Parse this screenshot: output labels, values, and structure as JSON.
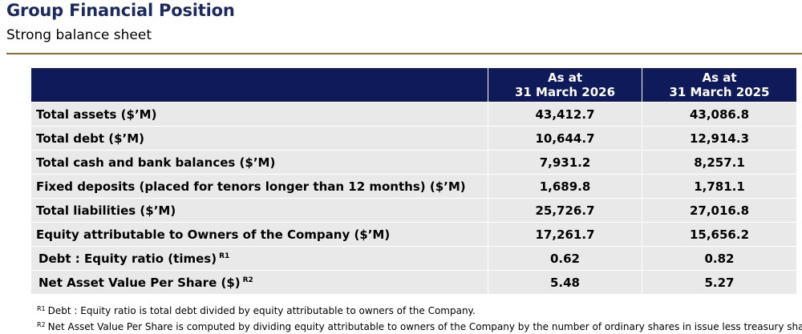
{
  "header": {
    "title": "Group Financial Position",
    "subtitle": "Strong balance sheet"
  },
  "table": {
    "columns": [
      {
        "line1": "As at",
        "line2": "31 March 2026"
      },
      {
        "line1": "As at",
        "line2": "31 March 2025"
      }
    ],
    "rows": [
      {
        "label": "Total assets ($’M)",
        "note": "",
        "v2026": "43,412.7",
        "v2025": "43,086.8"
      },
      {
        "label": "Total debt ($’M)",
        "note": "",
        "v2026": "10,644.7",
        "v2025": "12,914.3"
      },
      {
        "label": "Total cash and bank balances ($’M)",
        "note": "",
        "v2026": "7,931.2",
        "v2025": "8,257.1"
      },
      {
        "label": "Fixed deposits (placed for tenors longer than 12 months) ($’M)",
        "note": "",
        "v2026": "1,689.8",
        "v2025": "1,781.1"
      },
      {
        "label": "Total liabilities ($’M)",
        "note": "",
        "v2026": "25,726.7",
        "v2025": "27,016.8"
      },
      {
        "label": "Equity attributable to Owners of the Company ($’M)",
        "note": "",
        "v2026": "17,261.7",
        "v2025": "15,656.2"
      },
      {
        "label": "Debt : Equity ratio (times)",
        "note": "R1",
        "v2026": "0.62",
        "v2025": "0.82"
      },
      {
        "label": "Net Asset Value Per Share ($)",
        "note": "R2",
        "v2026": "5.48",
        "v2025": "5.27"
      }
    ]
  },
  "footnotes": [
    {
      "mark": "R1",
      "text": "Debt : Equity ratio is total debt divided by equity attributable to owners of the Company."
    },
    {
      "mark": "R2",
      "text": "Net Asset Value Per Share is computed by dividing equity attributable to owners of the Company by the number of ordinary shares in issue less treasury shares."
    }
  ],
  "colors": {
    "title": "#1b2a5e",
    "header_bg": "#0f1a5a",
    "row_bg": "#e9e9e9",
    "rule": "#8a6d3b"
  }
}
